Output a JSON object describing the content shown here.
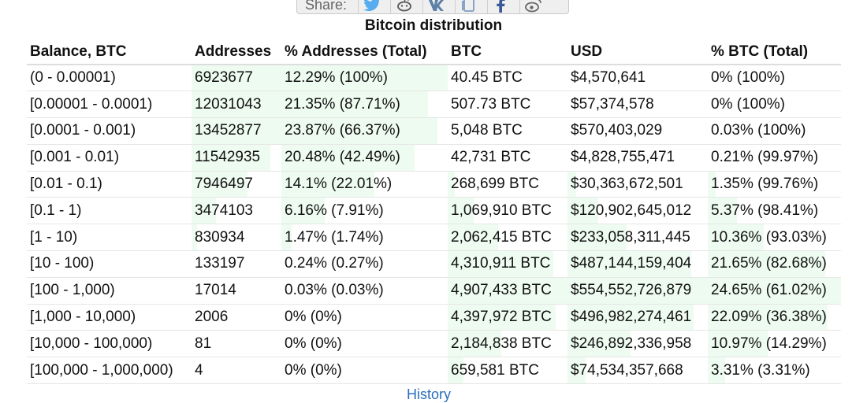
{
  "share": {
    "label": "Share:",
    "buttons": [
      {
        "icon": "twitter-icon",
        "color": "#55acee"
      },
      {
        "icon": "reddit-icon",
        "color": "#555555"
      },
      {
        "icon": "vk-icon",
        "color": "#5b7fa6"
      },
      {
        "icon": "copy-icon",
        "color": "#8aa4c8"
      },
      {
        "icon": "facebook-icon",
        "color": "#3b5998"
      },
      {
        "icon": "weibo-icon",
        "color": "#666666"
      }
    ]
  },
  "title": "Bitcoin distribution",
  "table": {
    "headers": [
      "Balance, BTC",
      "Addresses",
      "% Addresses (Total)",
      "BTC",
      "USD",
      "% BTC (Total)"
    ],
    "rows": [
      {
        "balance": "(0 - 0.00001)",
        "addresses": "6923677",
        "pct_addresses": "12.29% (100%)",
        "btc": "40.45 BTC",
        "usd": "$4,570,641",
        "pct_btc": "0% (100%)",
        "fill_addr": 1.0,
        "fill_pct_addr": 1.0,
        "fill_btc": 0.0,
        "fill_usd": 0.0,
        "fill_pct_btc": 0.0
      },
      {
        "balance": "[0.00001 - 0.0001)",
        "addresses": "12031043",
        "pct_addresses": "21.35% (87.71%)",
        "btc": "507.73 BTC",
        "usd": "$57,374,578",
        "pct_btc": "0% (100%)",
        "fill_addr": 1.0,
        "fill_pct_addr": 0.88,
        "fill_btc": 0.0,
        "fill_usd": 0.0,
        "fill_pct_btc": 0.0
      },
      {
        "balance": "[0.0001 - 0.001)",
        "addresses": "13452877",
        "pct_addresses": "23.87% (66.37%)",
        "btc": "5,048 BTC",
        "usd": "$570,403,029",
        "pct_btc": "0.03% (100%)",
        "fill_addr": 1.0,
        "fill_pct_addr": 0.94,
        "fill_btc": 0.0,
        "fill_usd": 0.0,
        "fill_pct_btc": 0.0
      },
      {
        "balance": "[0.001 - 0.01)",
        "addresses": "11542935",
        "pct_addresses": "20.48% (42.49%)",
        "btc": "42,731 BTC",
        "usd": "$4,828,755,471",
        "pct_btc": "0.21% (99.97%)",
        "fill_addr": 0.88,
        "fill_pct_addr": 0.8,
        "fill_btc": 0.0,
        "fill_usd": 0.0,
        "fill_pct_btc": 0.0
      },
      {
        "balance": "[0.01 - 0.1)",
        "addresses": "7946497",
        "pct_addresses": "14.1% (22.01%)",
        "btc": "268,699 BTC",
        "usd": "$30,363,672,501",
        "pct_btc": "1.35% (99.76%)",
        "fill_addr": 0.62,
        "fill_pct_addr": 0.56,
        "fill_btc": 0.06,
        "fill_usd": 0.06,
        "fill_pct_btc": 0.06
      },
      {
        "balance": "[0.1 - 1)",
        "addresses": "3474103",
        "pct_addresses": "6.16% (7.91%)",
        "btc": "1,069,910 BTC",
        "usd": "$120,902,645,012",
        "pct_btc": "5.37% (98.41%)",
        "fill_addr": 0.27,
        "fill_pct_addr": 0.26,
        "fill_btc": 0.22,
        "fill_usd": 0.22,
        "fill_pct_btc": 0.22
      },
      {
        "balance": "[1 - 10)",
        "addresses": "830934",
        "pct_addresses": "1.47% (1.74%)",
        "btc": "2,062,415 BTC",
        "usd": "$233,058,311,445",
        "pct_btc": "10.36% (93.03%)",
        "fill_addr": 0.06,
        "fill_pct_addr": 0.06,
        "fill_btc": 0.42,
        "fill_usd": 0.42,
        "fill_pct_btc": 0.42
      },
      {
        "balance": "[10 - 100)",
        "addresses": "133197",
        "pct_addresses": "0.24% (0.27%)",
        "btc": "4,310,911 BTC",
        "usd": "$487,144,159,404",
        "pct_btc": "21.65% (82.68%)",
        "fill_addr": 0.0,
        "fill_pct_addr": 0.0,
        "fill_btc": 0.88,
        "fill_usd": 0.88,
        "fill_pct_btc": 0.88
      },
      {
        "balance": "[100 - 1,000)",
        "addresses": "17014",
        "pct_addresses": "0.03% (0.03%)",
        "btc": "4,907,433 BTC",
        "usd": "$554,552,726,879",
        "pct_btc": "24.65% (61.02%)",
        "fill_addr": 0.0,
        "fill_pct_addr": 0.0,
        "fill_btc": 1.0,
        "fill_usd": 1.0,
        "fill_pct_btc": 1.0
      },
      {
        "balance": "[1,000 - 10,000)",
        "addresses": "2006",
        "pct_addresses": "0% (0%)",
        "btc": "4,397,972 BTC",
        "usd": "$496,982,274,461",
        "pct_btc": "22.09% (36.38%)",
        "fill_addr": 0.0,
        "fill_pct_addr": 0.0,
        "fill_btc": 0.9,
        "fill_usd": 0.9,
        "fill_pct_btc": 0.9
      },
      {
        "balance": "[10,000 - 100,000)",
        "addresses": "81",
        "pct_addresses": "0% (0%)",
        "btc": "2,184,838 BTC",
        "usd": "$246,892,336,958",
        "pct_btc": "10.97% (14.29%)",
        "fill_addr": 0.0,
        "fill_pct_addr": 0.0,
        "fill_btc": 0.45,
        "fill_usd": 0.45,
        "fill_pct_btc": 0.45
      },
      {
        "balance": "[100,000 - 1,000,000)",
        "addresses": "4",
        "pct_addresses": "0% (0%)",
        "btc": "659,581 BTC",
        "usd": "$74,534,357,668",
        "pct_btc": "3.31% (3.31%)",
        "fill_addr": 0.0,
        "fill_pct_addr": 0.0,
        "fill_btc": 0.13,
        "fill_usd": 0.13,
        "fill_pct_btc": 0.13
      }
    ]
  },
  "footer": {
    "history_link": "History"
  }
}
